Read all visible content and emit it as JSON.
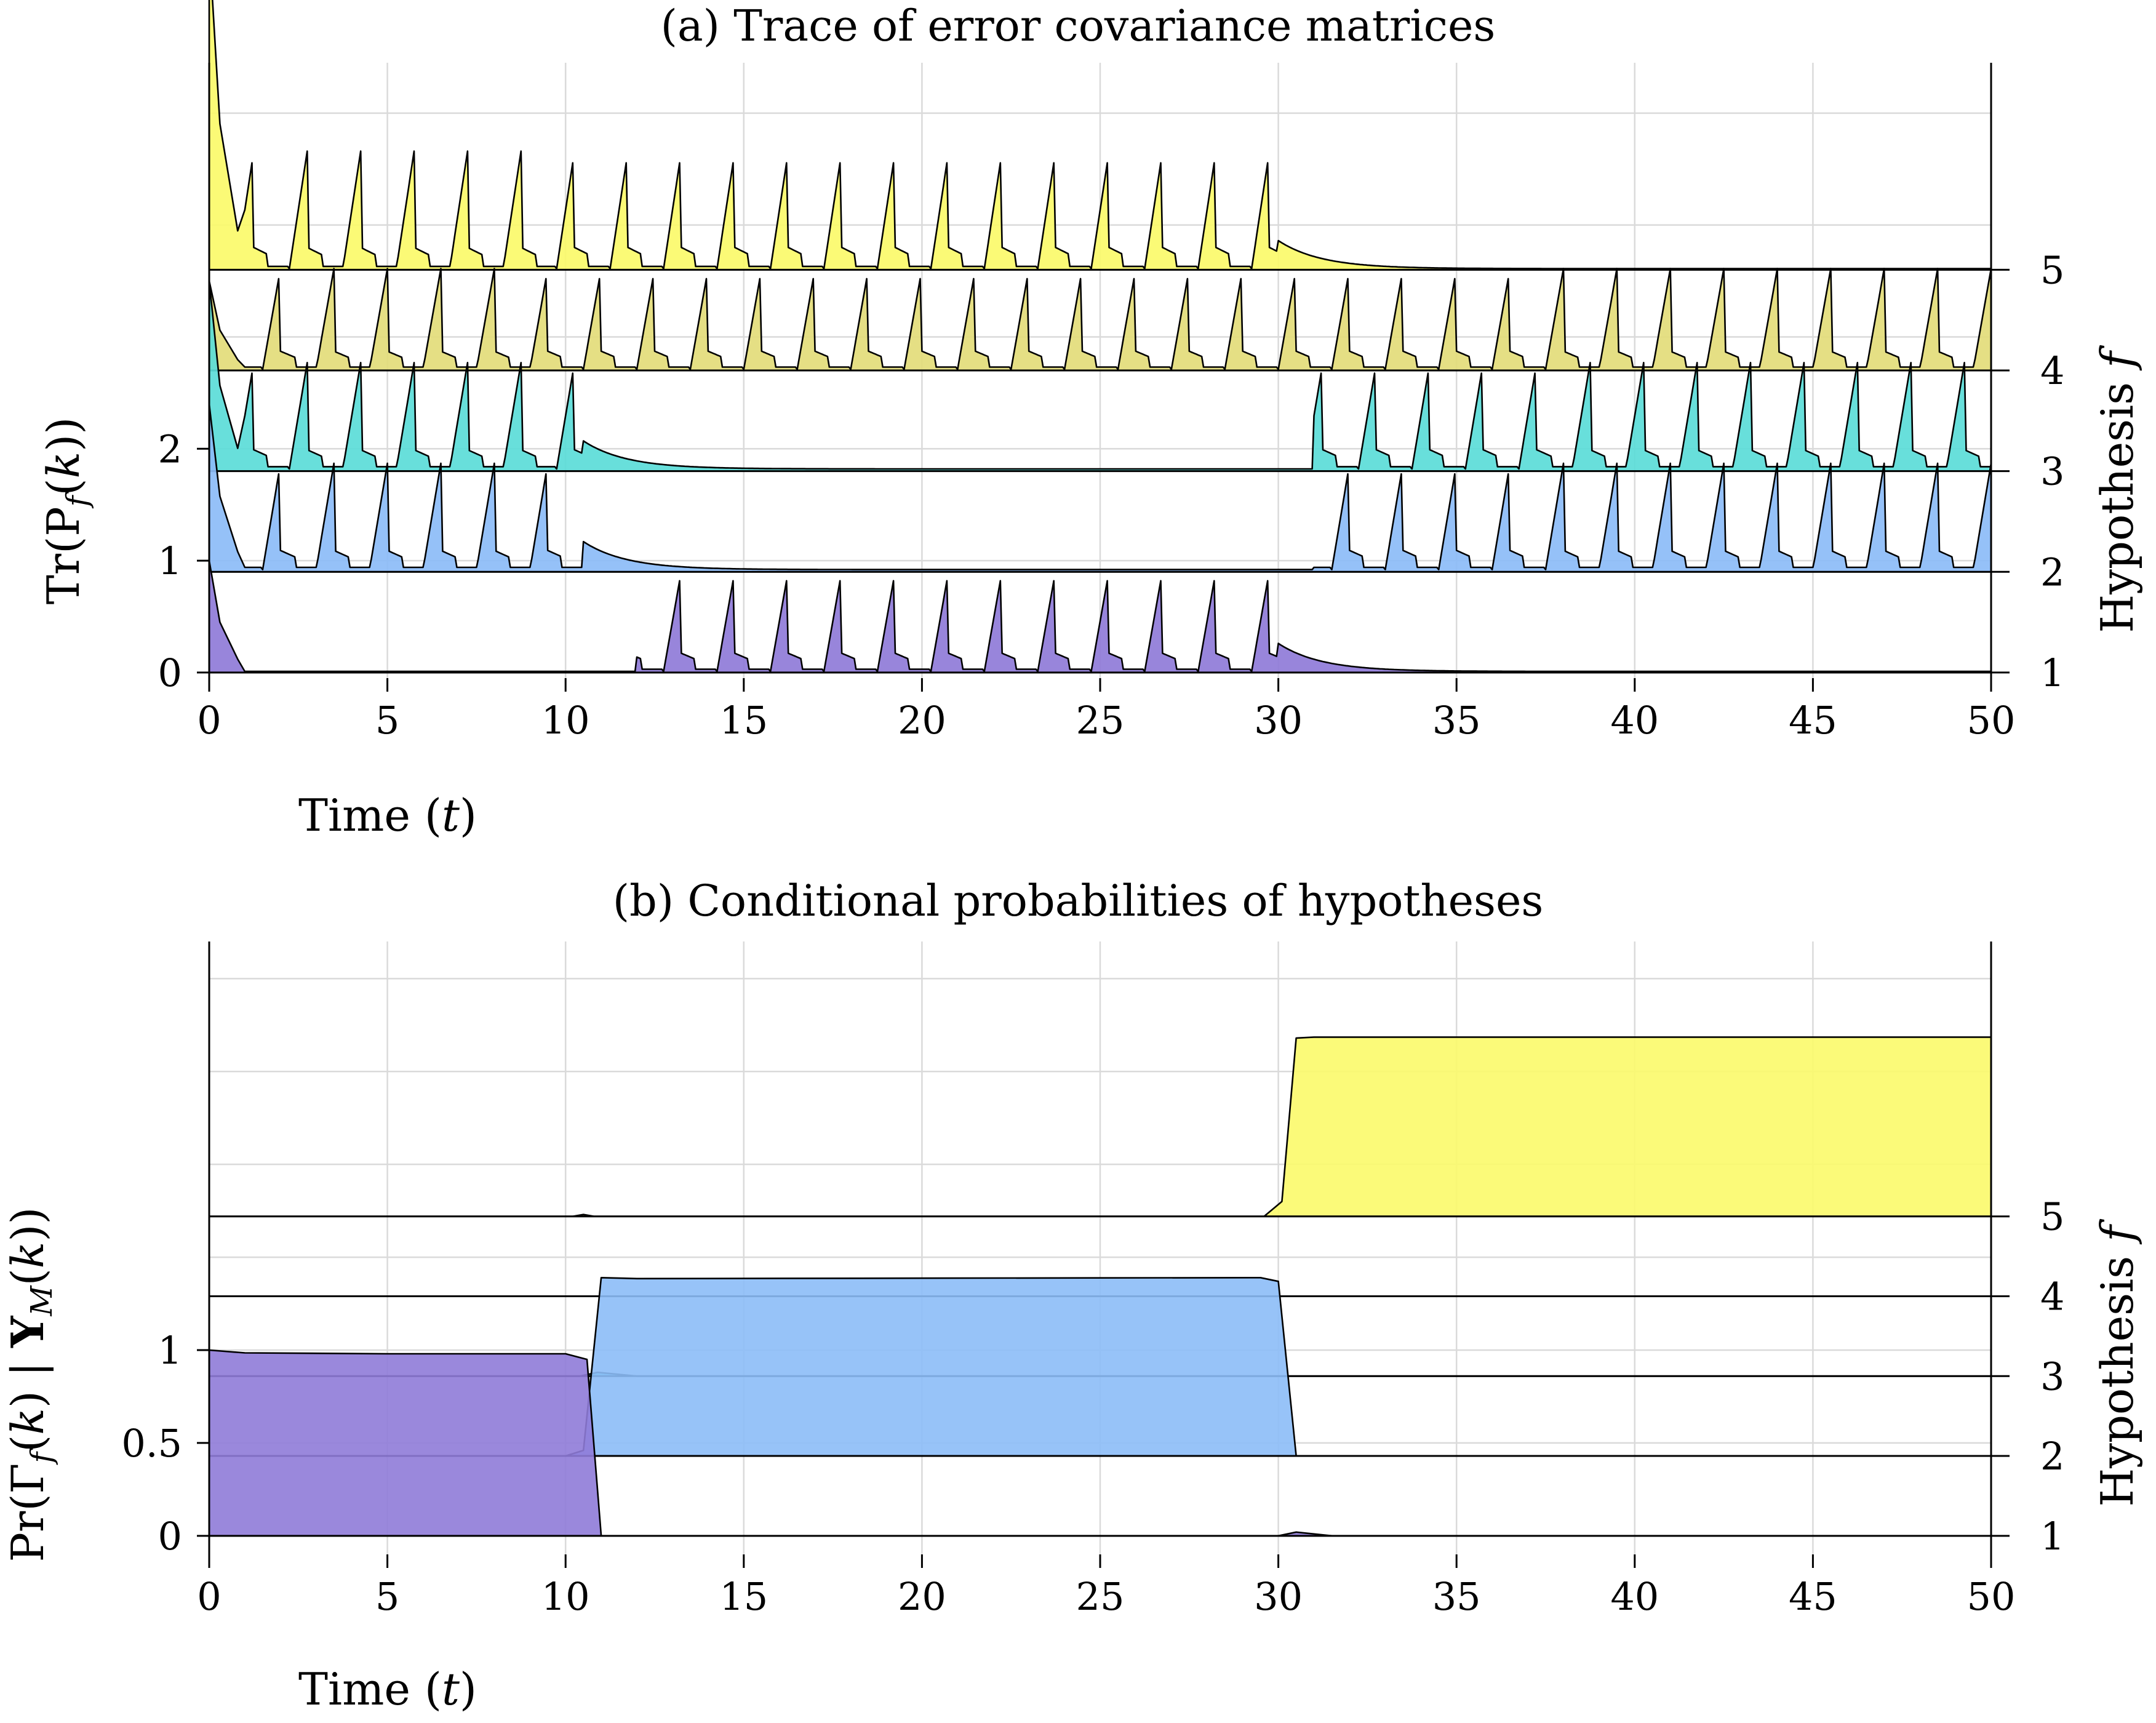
{
  "chart_data": [
    {
      "type": "area",
      "title": "(a) Trace of error covariance matrices",
      "xlabel": "Time (t)",
      "ylabel": "Tr(P_f(k))",
      "ylabel_right": "Hypothesis f",
      "xlim": [
        0,
        50
      ],
      "xticks": [
        "0",
        "5",
        "10",
        "15",
        "20",
        "25",
        "30",
        "35",
        "40",
        "45",
        "50"
      ],
      "yticks_left": [
        "0",
        "1",
        "2"
      ],
      "yticks_left_values": [
        0,
        1,
        2
      ],
      "yticks_right": [
        "1",
        "2",
        "3",
        "4",
        "5"
      ],
      "grid": true,
      "stack_offset": 0.9,
      "period": 1.5,
      "series": [
        {
          "hypothesis": 1,
          "color": "#8f7bd8",
          "start": 1.0,
          "baseline": 0.01,
          "pulse_height": 0.9,
          "pulse_on": [
            [
              12,
              30
            ]
          ]
        },
        {
          "hypothesis": 2,
          "color": "#8cbcf7",
          "start": 1.5,
          "baseline": 0.02,
          "pulse_height": 0.95,
          "pulse_on": [
            [
              0,
              10.5
            ],
            [
              31,
              50
            ]
          ]
        },
        {
          "hypothesis": 3,
          "color": "#5bdcd8",
          "start": 1.7,
          "baseline": 0.02,
          "pulse_height": 0.95,
          "pulse_on": [
            [
              0,
              10.5
            ],
            [
              31,
              50
            ]
          ]
        },
        {
          "hypothesis": 4,
          "color": "#e3dc7a",
          "start": 0.8,
          "baseline": 0.01,
          "pulse_height": 0.9,
          "pulse_on": [
            [
              0,
              50
            ]
          ]
        },
        {
          "hypothesis": 5,
          "color": "#fbfa6a",
          "start": 2.9,
          "baseline": 0.01,
          "pulse_height": 1.05,
          "pulse_on": [
            [
              0,
              30
            ]
          ]
        }
      ]
    },
    {
      "type": "area",
      "title": "(b) Conditional probabilities of hypotheses",
      "xlabel": "Time (t)",
      "ylabel": "Pr(Γ_f(k) | Y_M(k))",
      "ylabel_right": "Hypothesis f",
      "xlim": [
        0,
        50
      ],
      "xticks": [
        "0",
        "5",
        "10",
        "15",
        "20",
        "25",
        "30",
        "35",
        "40",
        "45",
        "50"
      ],
      "yticks_left": [
        "0",
        "0.5",
        "1"
      ],
      "yticks_left_values": [
        0,
        0.5,
        1
      ],
      "yticks_right": [
        "1",
        "2",
        "3",
        "4",
        "5"
      ],
      "grid": true,
      "stack_offset": 0.43,
      "series": [
        {
          "hypothesis": 1,
          "color": "#8f7bd8",
          "points": [
            [
              0,
              1.0
            ],
            [
              1,
              0.985
            ],
            [
              5,
              0.98
            ],
            [
              10,
              0.98
            ],
            [
              10.6,
              0.95
            ],
            [
              11,
              0.0
            ],
            [
              30,
              0.0
            ],
            [
              30.5,
              0.02
            ],
            [
              31.5,
              0.0
            ],
            [
              50,
              0.0
            ]
          ]
        },
        {
          "hypothesis": 2,
          "color": "#8cbcf7",
          "points": [
            [
              0,
              0.0
            ],
            [
              10,
              0.0
            ],
            [
              10.5,
              0.03
            ],
            [
              11,
              0.96
            ],
            [
              12,
              0.955
            ],
            [
              29.5,
              0.96
            ],
            [
              30,
              0.94
            ],
            [
              30.5,
              0.0
            ],
            [
              50,
              0.0
            ]
          ]
        },
        {
          "hypothesis": 3,
          "color": "#5bdcd8",
          "points": [
            [
              0,
              0.0
            ],
            [
              10.4,
              0.0
            ],
            [
              10.9,
              0.02
            ],
            [
              12,
              0.0
            ],
            [
              50,
              0.0
            ]
          ]
        },
        {
          "hypothesis": 4,
          "color": "#e3dc7a",
          "points": [
            [
              0,
              0.0
            ],
            [
              50,
              0.0
            ]
          ]
        },
        {
          "hypothesis": 5,
          "color": "#fbfa6a",
          "points": [
            [
              0,
              0.0
            ],
            [
              10.2,
              0.0
            ],
            [
              10.5,
              0.01
            ],
            [
              10.8,
              0.0
            ],
            [
              29.6,
              0.0
            ],
            [
              30.1,
              0.08
            ],
            [
              30.5,
              0.96
            ],
            [
              31,
              0.965
            ],
            [
              50,
              0.965
            ]
          ]
        }
      ]
    }
  ]
}
